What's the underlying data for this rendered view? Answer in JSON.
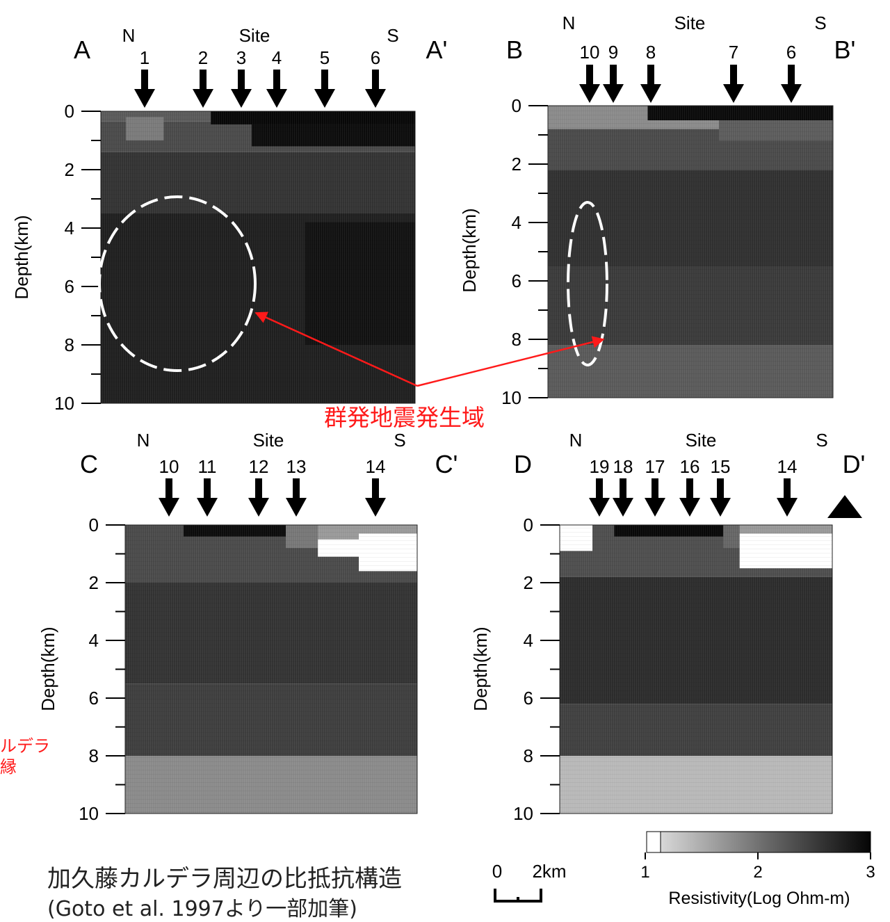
{
  "panels": [
    {
      "left_label": "A",
      "right_label": "A'",
      "north": "N",
      "site": "Site",
      "south": "S",
      "sites": [
        "1",
        "2",
        "3",
        "4",
        "5",
        "6"
      ],
      "ylabel": "Depth(km)",
      "yticks": [
        "0",
        "2",
        "4",
        "6",
        "8",
        "10"
      ]
    },
    {
      "left_label": "B",
      "right_label": "B'",
      "north": "N",
      "site": "Site",
      "south": "S",
      "sites": [
        "10",
        "9",
        "8",
        "7",
        "6"
      ],
      "ylabel": "Depth(km)",
      "yticks": [
        "0",
        "2",
        "4",
        "6",
        "8",
        "10"
      ]
    },
    {
      "left_label": "C",
      "right_label": "C'",
      "north": "N",
      "site": "Site",
      "south": "S",
      "sites": [
        "10",
        "11",
        "12",
        "13",
        "14"
      ],
      "ylabel": "Depth(km)",
      "yticks": [
        "0",
        "2",
        "4",
        "6",
        "8",
        "10"
      ]
    },
    {
      "left_label": "D",
      "right_label": "D'",
      "north": "N",
      "site": "Site",
      "south": "S",
      "sites": [
        "19",
        "18",
        "17",
        "16",
        "15",
        "14"
      ],
      "ylabel": "Depth(km)",
      "yticks": [
        "0",
        "2",
        "4",
        "6",
        "8",
        "10"
      ]
    }
  ],
  "annotations": {
    "swarm_label": "群発地震発生域",
    "caldera_label_line1": "ルデラ",
    "caldera_label_line2": "縁"
  },
  "scale_bar": {
    "zero": "0",
    "length": "2km"
  },
  "colorbar": {
    "ticks": [
      "1",
      "2",
      "3"
    ],
    "label": "Resistivity(Log Ohm-m)"
  },
  "caption": {
    "line1": "加久藤カルデラ周辺の比抵抗構造",
    "line2": "(Goto et al. 1997より一部加筆)"
  },
  "colors": {
    "annotation_red": "#ff1a1a",
    "dashed_ellipse": "#ffffff"
  }
}
